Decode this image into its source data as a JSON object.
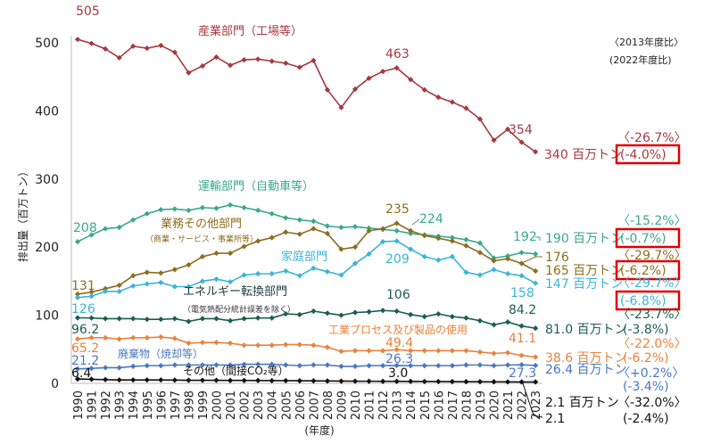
{
  "chart_data": {
    "type": "line",
    "title": "",
    "ylabel": "排出量（百万トン）",
    "xlabel": "(年度)",
    "ylim": [
      0,
      520
    ],
    "yticks": [
      0,
      100,
      200,
      300,
      400,
      500
    ],
    "x": [
      1990,
      1991,
      1992,
      1993,
      1994,
      1995,
      1996,
      1997,
      1998,
      1999,
      2000,
      2001,
      2002,
      2003,
      2004,
      2005,
      2006,
      2007,
      2008,
      2009,
      2010,
      2011,
      2012,
      2013,
      2014,
      2015,
      2016,
      2017,
      2018,
      2019,
      2020,
      2021,
      2022,
      2023
    ],
    "comparison_headers": {
      "vs2013": "〈2013年度比〉",
      "vs2022": "(2022年度比)"
    },
    "series": [
      {
        "key": "industry",
        "name": "産業部門（工場等）",
        "color": "#a5393f",
        "values": [
          505,
          499,
          491,
          478,
          495,
          492,
          496,
          486,
          456,
          466,
          479,
          467,
          475,
          476,
          473,
          470,
          464,
          474,
          431,
          405,
          432,
          448,
          458,
          463,
          446,
          431,
          420,
          413,
          404,
          388,
          357,
          373,
          354,
          340
        ],
        "labels": {
          "start": "505",
          "y2013": "463",
          "y2022": "354",
          "end": "340 百万トン",
          "pct2013": "〈-26.7%〉",
          "pct2022": "(-4.0%)"
        },
        "boxed": true
      },
      {
        "key": "transport",
        "name": "運輸部門（自動車等）",
        "color": "#3aa88a",
        "values": [
          208,
          218,
          227,
          229,
          240,
          249,
          255,
          256,
          254,
          258,
          257,
          262,
          258,
          254,
          249,
          243,
          240,
          238,
          231,
          229,
          230,
          228,
          226,
          224,
          220,
          218,
          216,
          214,
          211,
          206,
          184,
          187,
          192,
          190
        ],
        "labels": {
          "start": "208",
          "y2013": "224",
          "y2022": "192",
          "end": "190 百万トン",
          "pct2013": "〈-15.2%〉",
          "pct2022": "(-0.7%)"
        },
        "boxed": true
      },
      {
        "key": "commercial",
        "name": "業務その他部門",
        "subname": "（商業・サービス・事業所等）",
        "color": "#8c6d1f",
        "values": [
          131,
          134,
          139,
          144,
          158,
          163,
          162,
          167,
          174,
          186,
          191,
          191,
          201,
          209,
          214,
          222,
          219,
          227,
          220,
          197,
          200,
          224,
          227,
          235,
          224,
          217,
          213,
          209,
          202,
          192,
          180,
          183,
          176,
          165
        ],
        "labels": {
          "start": "131",
          "y2013": "235",
          "y2022": "176",
          "end": "165 百万トン",
          "pct2013": "〈-29.7%〉",
          "pct2022": "(-6.2%)"
        },
        "boxed": true
      },
      {
        "key": "residential",
        "name": "家庭部門",
        "color": "#3cb4d8",
        "values": [
          126,
          128,
          135,
          135,
          143,
          146,
          148,
          142,
          142,
          150,
          153,
          149,
          159,
          161,
          161,
          165,
          158,
          169,
          164,
          159,
          176,
          190,
          208,
          209,
          197,
          186,
          181,
          186,
          163,
          159,
          167,
          161,
          158,
          147
        ],
        "labels": {
          "start": "126",
          "y2013": "209",
          "y2022": "158",
          "end": "147 百万トン",
          "pct2013": "〈-29.7%〉",
          "pct2022": "(-6.8%)"
        },
        "boxed": true
      },
      {
        "key": "energy",
        "name": "エネルギー転換部門",
        "subname": "（電気熱配分統計誤差を除く）",
        "color": "#1b5e4e",
        "values": [
          96.2,
          96,
          95,
          95,
          95,
          94,
          94,
          95,
          91,
          95,
          95,
          92,
          95,
          96,
          96,
          102,
          101,
          106,
          103,
          100,
          104,
          105,
          107,
          106,
          101,
          98,
          102,
          98,
          96,
          92,
          86,
          90,
          84.2,
          81.0
        ],
        "labels": {
          "start": "96.2",
          "y2013": "106",
          "y2022": "84.2",
          "end": "81.0 百万トン",
          "pct2013": "〈-23.7%〉",
          "pct2022": "(-3.8%)"
        },
        "boxed": false
      },
      {
        "key": "process",
        "name": "工業プロセス及び製品の使用",
        "color": "#e8823c",
        "values": [
          65.2,
          67,
          67,
          65,
          67,
          67,
          68,
          66,
          59,
          60,
          60,
          59,
          56,
          56,
          56,
          57,
          57,
          56,
          53,
          47,
          48,
          48,
          48,
          49.4,
          48,
          48,
          48,
          48,
          48,
          46,
          44,
          45,
          41.1,
          38.6
        ],
        "labels": {
          "start": "65.2",
          "y2013": "49.4",
          "y2022": "41.1",
          "end": "38.6 百万トン",
          "pct2013": "〈-22.0%〉",
          "pct2022": "(-6.2%)"
        },
        "boxed": false
      },
      {
        "key": "waste",
        "name": "廃棄物（焼却等）",
        "color": "#4a78c0",
        "values": [
          21.2,
          22,
          23,
          23,
          25,
          26,
          26,
          27,
          27,
          27,
          27,
          27,
          28,
          28,
          28,
          27,
          26,
          27,
          27,
          25,
          25,
          26,
          26,
          26.3,
          26,
          26,
          26,
          26,
          27,
          27,
          26,
          27,
          27.3,
          26.4
        ],
        "labels": {
          "start": "21.2",
          "y2013": "26.3",
          "y2022": "27.3",
          "end": "26.4 百万トン",
          "pct2013": "〈+0.2%〉",
          "pct2022": "(-3.4%)"
        },
        "boxed": false
      },
      {
        "key": "other",
        "name": "その他（間接CO₂等）",
        "color": "#111111",
        "values": [
          6.4,
          6.0,
          5.5,
          5,
          5,
          5,
          5,
          4.8,
          4.5,
          4.5,
          4.5,
          4.3,
          4.3,
          4.2,
          4,
          4,
          3.8,
          3.7,
          3.5,
          3.3,
          3.2,
          3.1,
          3.0,
          3.0,
          2.9,
          2.8,
          2.7,
          2.6,
          2.5,
          2.4,
          2.3,
          2.2,
          2.1,
          2.1
        ],
        "labels": {
          "start": "6.4",
          "y2013": "3.0",
          "y2022": "2.1",
          "end": "2.1 百万トン",
          "pct2013": "〈-32.0%〉",
          "pct2022": "(-2.4%)"
        },
        "boxed": false
      }
    ]
  }
}
